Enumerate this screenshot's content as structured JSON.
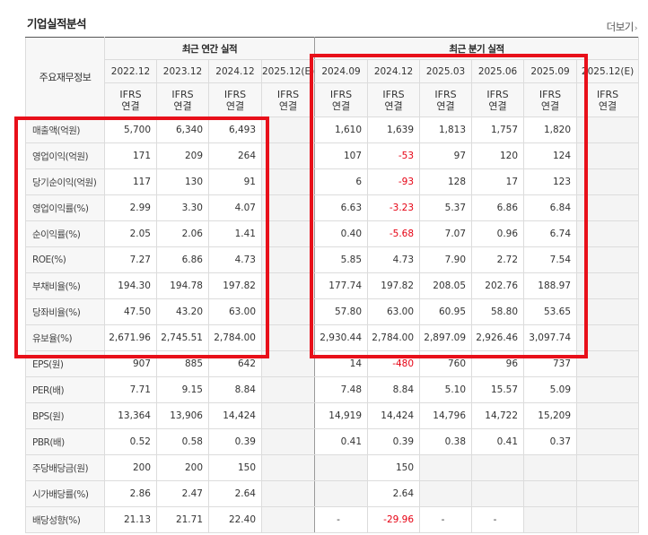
{
  "header": {
    "title": "기업실적분석",
    "more_label": "더보기"
  },
  "table": {
    "row_header_label": "주요재무정보",
    "group_annual": "최근 연간 실적",
    "group_quarterly": "최근 분기 실적",
    "periods": [
      "2022.12",
      "2023.12",
      "2024.12",
      "2025.12(E)",
      "2024.09",
      "2024.12",
      "2025.03",
      "2025.06",
      "2025.09",
      "2025.12(E)"
    ],
    "ifrs_top": "IFRS",
    "ifrs_bottom": "연결",
    "rows": [
      {
        "label": "매출액(억원)",
        "cells": [
          "5,700",
          "6,340",
          "6,493",
          "",
          "1,610",
          "1,639",
          "1,813",
          "1,757",
          "1,820",
          ""
        ]
      },
      {
        "label": "영업이익(억원)",
        "cells": [
          "171",
          "209",
          "264",
          "",
          "107",
          "-53",
          "97",
          "120",
          "124",
          ""
        ]
      },
      {
        "label": "당기순이익(억원)",
        "cells": [
          "117",
          "130",
          "91",
          "",
          "6",
          "-93",
          "128",
          "17",
          "123",
          ""
        ]
      },
      {
        "label": "영업이익률(%)",
        "cells": [
          "2.99",
          "3.30",
          "4.07",
          "",
          "6.63",
          "-3.23",
          "5.37",
          "6.86",
          "6.84",
          ""
        ]
      },
      {
        "label": "순이익률(%)",
        "cells": [
          "2.05",
          "2.06",
          "1.41",
          "",
          "0.40",
          "-5.68",
          "7.07",
          "0.96",
          "6.74",
          ""
        ]
      },
      {
        "label": "ROE(%)",
        "cells": [
          "7.27",
          "6.86",
          "4.73",
          "",
          "5.85",
          "4.73",
          "7.90",
          "2.72",
          "7.54",
          ""
        ]
      },
      {
        "label": "부채비율(%)",
        "cells": [
          "194.30",
          "194.78",
          "197.82",
          "",
          "177.74",
          "197.82",
          "208.05",
          "202.76",
          "188.97",
          ""
        ]
      },
      {
        "label": "당좌비율(%)",
        "cells": [
          "47.50",
          "43.20",
          "63.00",
          "",
          "57.80",
          "63.00",
          "60.95",
          "58.80",
          "53.65",
          ""
        ]
      },
      {
        "label": "유보율(%)",
        "cells": [
          "2,671.96",
          "2,745.51",
          "2,784.00",
          "",
          "2,930.44",
          "2,784.00",
          "2,897.09",
          "2,926.46",
          "3,097.74",
          ""
        ]
      },
      {
        "label": "EPS(원)",
        "cells": [
          "907",
          "885",
          "642",
          "",
          "14",
          "-480",
          "760",
          "96",
          "737",
          ""
        ]
      },
      {
        "label": "PER(배)",
        "cells": [
          "7.71",
          "9.15",
          "8.84",
          "",
          "7.48",
          "8.84",
          "5.10",
          "15.57",
          "5.09",
          ""
        ]
      },
      {
        "label": "BPS(원)",
        "cells": [
          "13,364",
          "13,906",
          "14,424",
          "",
          "14,919",
          "14,424",
          "14,796",
          "14,722",
          "15,209",
          ""
        ]
      },
      {
        "label": "PBR(배)",
        "cells": [
          "0.52",
          "0.58",
          "0.39",
          "",
          "0.41",
          "0.39",
          "0.38",
          "0.41",
          "0.37",
          ""
        ]
      },
      {
        "label": "주당배당금(원)",
        "cells": [
          "200",
          "200",
          "150",
          "",
          "",
          "150",
          "",
          "",
          "",
          ""
        ]
      },
      {
        "label": "시가배당률(%)",
        "cells": [
          "2.86",
          "2.47",
          "2.64",
          "",
          "",
          "2.64",
          "",
          "",
          "",
          ""
        ]
      },
      {
        "label": "배당성향(%)",
        "cells": [
          "21.13",
          "21.71",
          "22.40",
          "",
          "-",
          "-29.96",
          "-",
          "-",
          "",
          ""
        ]
      }
    ]
  },
  "colors": {
    "ifrs_text": "#e8380d",
    "negative": "#e60012",
    "highlight_box": "#e8101a"
  }
}
